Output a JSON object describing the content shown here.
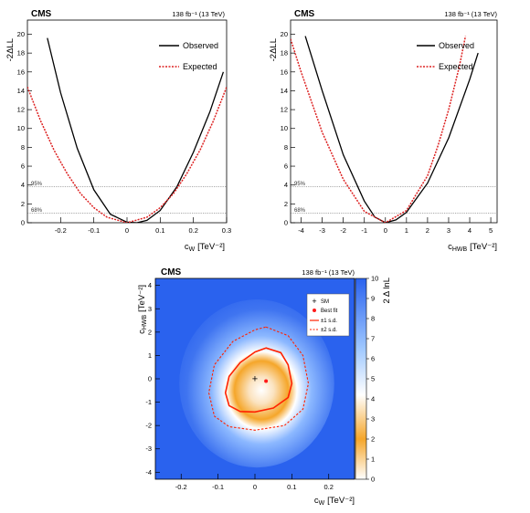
{
  "chart_data": [
    {
      "type": "line",
      "cms_label": "CMS",
      "lumi_label": "138 fb⁻¹ (13 TeV)",
      "xlabel": "c",
      "xlabel_sub": "W",
      "xlabel_unit": "[TeV⁻²]",
      "ylabel": "-2ΔLL",
      "xlim": [
        -0.3,
        0.3
      ],
      "ylim": [
        0,
        21.5
      ],
      "xticks": [
        "-0.2",
        "-0.1",
        "0",
        "0.1",
        "0.2",
        "0.3"
      ],
      "xtick_values": [
        -0.2,
        -0.1,
        0,
        0.1,
        0.2,
        0.3
      ],
      "yticks": [
        "0",
        "2",
        "4",
        "6",
        "8",
        "10",
        "12",
        "14",
        "16",
        "18",
        "20"
      ],
      "ytick_values": [
        0,
        2,
        4,
        6,
        8,
        10,
        12,
        14,
        16,
        18,
        20
      ],
      "cl_lines": [
        {
          "label": "95%",
          "value": 3.84
        },
        {
          "label": "68%",
          "value": 1.0
        }
      ],
      "legend": [
        "Observed",
        "Expected"
      ],
      "series": [
        {
          "name": "Observed",
          "color": "#000000",
          "x": [
            -0.24,
            -0.2,
            -0.15,
            -0.1,
            -0.05,
            0.0,
            0.03,
            0.06,
            0.1,
            0.15,
            0.2,
            0.25,
            0.29
          ],
          "y": [
            19.6,
            13.8,
            7.9,
            3.5,
            0.9,
            0.06,
            0.0,
            0.25,
            1.3,
            3.8,
            7.5,
            11.8,
            16.0
          ]
        },
        {
          "name": "Expected",
          "color": "#dd2222",
          "x": [
            -0.3,
            -0.26,
            -0.22,
            -0.18,
            -0.14,
            -0.1,
            -0.06,
            0.0,
            0.06,
            0.1,
            0.14,
            0.18,
            0.22,
            0.26,
            0.3
          ],
          "y": [
            14.4,
            10.8,
            7.7,
            5.2,
            3.1,
            1.6,
            0.58,
            0.0,
            0.58,
            1.6,
            3.1,
            5.2,
            7.7,
            10.8,
            14.4
          ]
        }
      ]
    },
    {
      "type": "line",
      "cms_label": "CMS",
      "lumi_label": "138 fb⁻¹ (13 TeV)",
      "xlabel": "c",
      "xlabel_sub": "HWB",
      "xlabel_unit": "[TeV⁻²]",
      "ylabel": "-2ΔLL",
      "xlim": [
        -4.5,
        5.3
      ],
      "ylim": [
        0,
        21.5
      ],
      "xticks": [
        "-4",
        "-3",
        "-2",
        "-1",
        "0",
        "1",
        "2",
        "3",
        "4",
        "5"
      ],
      "xtick_values": [
        -4,
        -3,
        -2,
        -1,
        0,
        1,
        2,
        3,
        4,
        5
      ],
      "yticks": [
        "0",
        "2",
        "4",
        "6",
        "8",
        "10",
        "12",
        "14",
        "16",
        "18",
        "20"
      ],
      "ytick_values": [
        0,
        2,
        4,
        6,
        8,
        10,
        12,
        14,
        16,
        18,
        20
      ],
      "cl_lines": [
        {
          "label": "95%",
          "value": 3.84
        },
        {
          "label": "68%",
          "value": 1.0
        }
      ],
      "legend": [
        "Observed",
        "Expected"
      ],
      "series": [
        {
          "name": "Observed",
          "color": "#000000",
          "x": [
            -3.8,
            -3.0,
            -2.0,
            -1.0,
            -0.5,
            0.0,
            0.5,
            1.0,
            2.0,
            3.0,
            4.0,
            4.4
          ],
          "y": [
            19.8,
            14.0,
            7.2,
            2.3,
            0.6,
            0.0,
            0.3,
            1.1,
            4.2,
            9.0,
            15.2,
            18.0
          ]
        },
        {
          "name": "Expected",
          "color": "#dd2222",
          "x": [
            -4.5,
            -4.0,
            -3.0,
            -2.0,
            -1.0,
            0.0,
            1.0,
            2.0,
            2.5,
            3.0,
            3.5,
            3.8
          ],
          "y": [
            19.5,
            16.0,
            9.6,
            4.6,
            1.2,
            0.0,
            1.3,
            5.0,
            8.2,
            12.0,
            16.5,
            19.8
          ]
        }
      ]
    },
    {
      "type": "heatmap",
      "cms_label": "CMS",
      "lumi_label": "138 fb⁻¹ (13 TeV)",
      "xlabel": "c",
      "xlabel_sub": "W",
      "xlabel_unit": "[TeV⁻²]",
      "ylabel": "c",
      "ylabel_sub": "HWB",
      "ylabel_unit": "[TeV⁻²]",
      "zlabel": "2 Δ lnL",
      "xlim": [
        -0.27,
        0.27
      ],
      "ylim": [
        -4.3,
        4.3
      ],
      "zlim": [
        0,
        10
      ],
      "xticks": [
        "-0.2",
        "-0.1",
        "0",
        "0.1",
        "0.2"
      ],
      "xtick_values": [
        -0.2,
        -0.1,
        0,
        0.1,
        0.2
      ],
      "yticks": [
        "-4",
        "-3",
        "-2",
        "-1",
        "0",
        "1",
        "2",
        "3",
        "4"
      ],
      "ytick_values": [
        -4,
        -3,
        -2,
        -1,
        0,
        1,
        2,
        3,
        4
      ],
      "zticks": [
        "0",
        "1",
        "2",
        "3",
        "4",
        "5",
        "6",
        "7",
        "8",
        "9",
        "10"
      ],
      "zcolors": [
        "#ffffff",
        "#f5a62a",
        "#ffffff",
        "#9fc8ff",
        "#2a62ee"
      ],
      "sm_point": {
        "x": 0.0,
        "y": 0.0,
        "label": "SM"
      },
      "best_fit": {
        "x": 0.03,
        "y": -0.1,
        "label": "Best fit"
      },
      "contours": [
        {
          "label": "±1 s.d.",
          "style": "solid",
          "color": "#ff2200",
          "points": [
            [
              0.03,
              1.32
            ],
            [
              0.07,
              1.12
            ],
            [
              0.09,
              0.6
            ],
            [
              0.1,
              -0.2
            ],
            [
              0.09,
              -0.8
            ],
            [
              0.05,
              -1.25
            ],
            [
              0.0,
              -1.42
            ],
            [
              -0.04,
              -1.4
            ],
            [
              -0.07,
              -1.15
            ],
            [
              -0.08,
              -0.6
            ],
            [
              -0.07,
              0.1
            ],
            [
              -0.04,
              0.7
            ],
            [
              0.0,
              1.15
            ]
          ]
        },
        {
          "label": "±2 s.d.",
          "style": "dashed",
          "color": "#ff2200",
          "points": [
            [
              0.03,
              2.22
            ],
            [
              0.09,
              1.85
            ],
            [
              0.13,
              1.0
            ],
            [
              0.145,
              -0.2
            ],
            [
              0.13,
              -1.3
            ],
            [
              0.08,
              -2.0
            ],
            [
              0.0,
              -2.2
            ],
            [
              -0.07,
              -2.05
            ],
            [
              -0.11,
              -1.6
            ],
            [
              -0.125,
              -0.6
            ],
            [
              -0.11,
              0.6
            ],
            [
              -0.06,
              1.6
            ],
            [
              0.0,
              2.1
            ]
          ]
        }
      ],
      "legend": [
        "SM",
        "Best fit",
        "±1 s.d.",
        "±2 s.d."
      ]
    }
  ]
}
